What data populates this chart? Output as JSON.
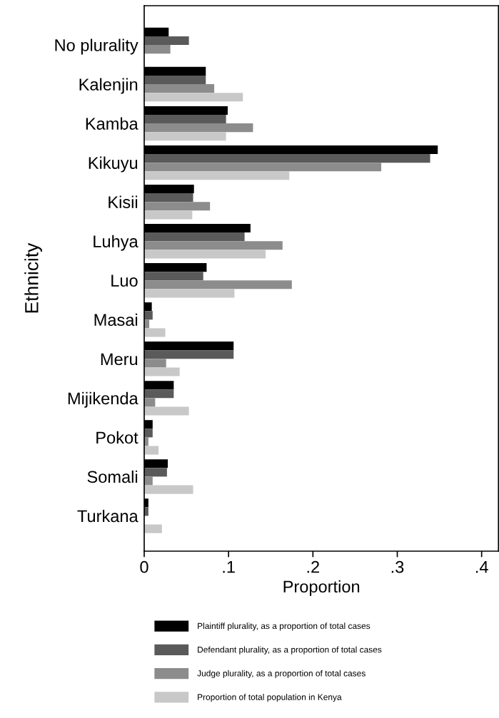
{
  "chart_data": {
    "type": "bar",
    "orientation": "horizontal",
    "xlabel": "Proportion",
    "ylabel": "Ethnicity",
    "categories": [
      "No plurality",
      "Kalenjin",
      "Kamba",
      "Kikuyu",
      "Kisii",
      "Luhya",
      "Luo",
      "Masai",
      "Meru",
      "Mijikenda",
      "Pokot",
      "Somali",
      "Turkana"
    ],
    "series": [
      {
        "name": "Plaintiff plurality, as a proportion of total cases",
        "color": "#000000",
        "values": [
          0.029,
          0.073,
          0.099,
          0.348,
          0.059,
          0.126,
          0.074,
          0.009,
          0.106,
          0.035,
          0.01,
          0.028,
          0.005
        ]
      },
      {
        "name": "Defendant plurality, as a proportion of total cases",
        "color": "#5a5a5a",
        "values": [
          0.053,
          0.073,
          0.097,
          0.339,
          0.058,
          0.119,
          0.07,
          0.01,
          0.106,
          0.035,
          0.01,
          0.027,
          0.005
        ]
      },
      {
        "name": "Judge plurality, as a proportion of total cases",
        "color": "#8c8c8c",
        "values": [
          0.031,
          0.083,
          0.129,
          0.281,
          0.078,
          0.164,
          0.175,
          0.006,
          0.026,
          0.013,
          0.005,
          0.01,
          null
        ]
      },
      {
        "name": "Proportion of total population in Kenya",
        "color": "#c8c8c8",
        "values": [
          null,
          0.117,
          0.097,
          0.172,
          0.057,
          0.144,
          0.107,
          0.025,
          0.042,
          0.053,
          0.017,
          0.058,
          0.021
        ]
      }
    ],
    "xlim": [
      0,
      0.42
    ],
    "xticks": [
      {
        "value": 0,
        "label": "0"
      },
      {
        "value": 0.1,
        "label": ".1"
      },
      {
        "value": 0.2,
        "label": ".2"
      },
      {
        "value": 0.3,
        "label": ".3"
      },
      {
        "value": 0.4,
        "label": ".4"
      }
    ],
    "grid": false,
    "legend": "bottom"
  }
}
